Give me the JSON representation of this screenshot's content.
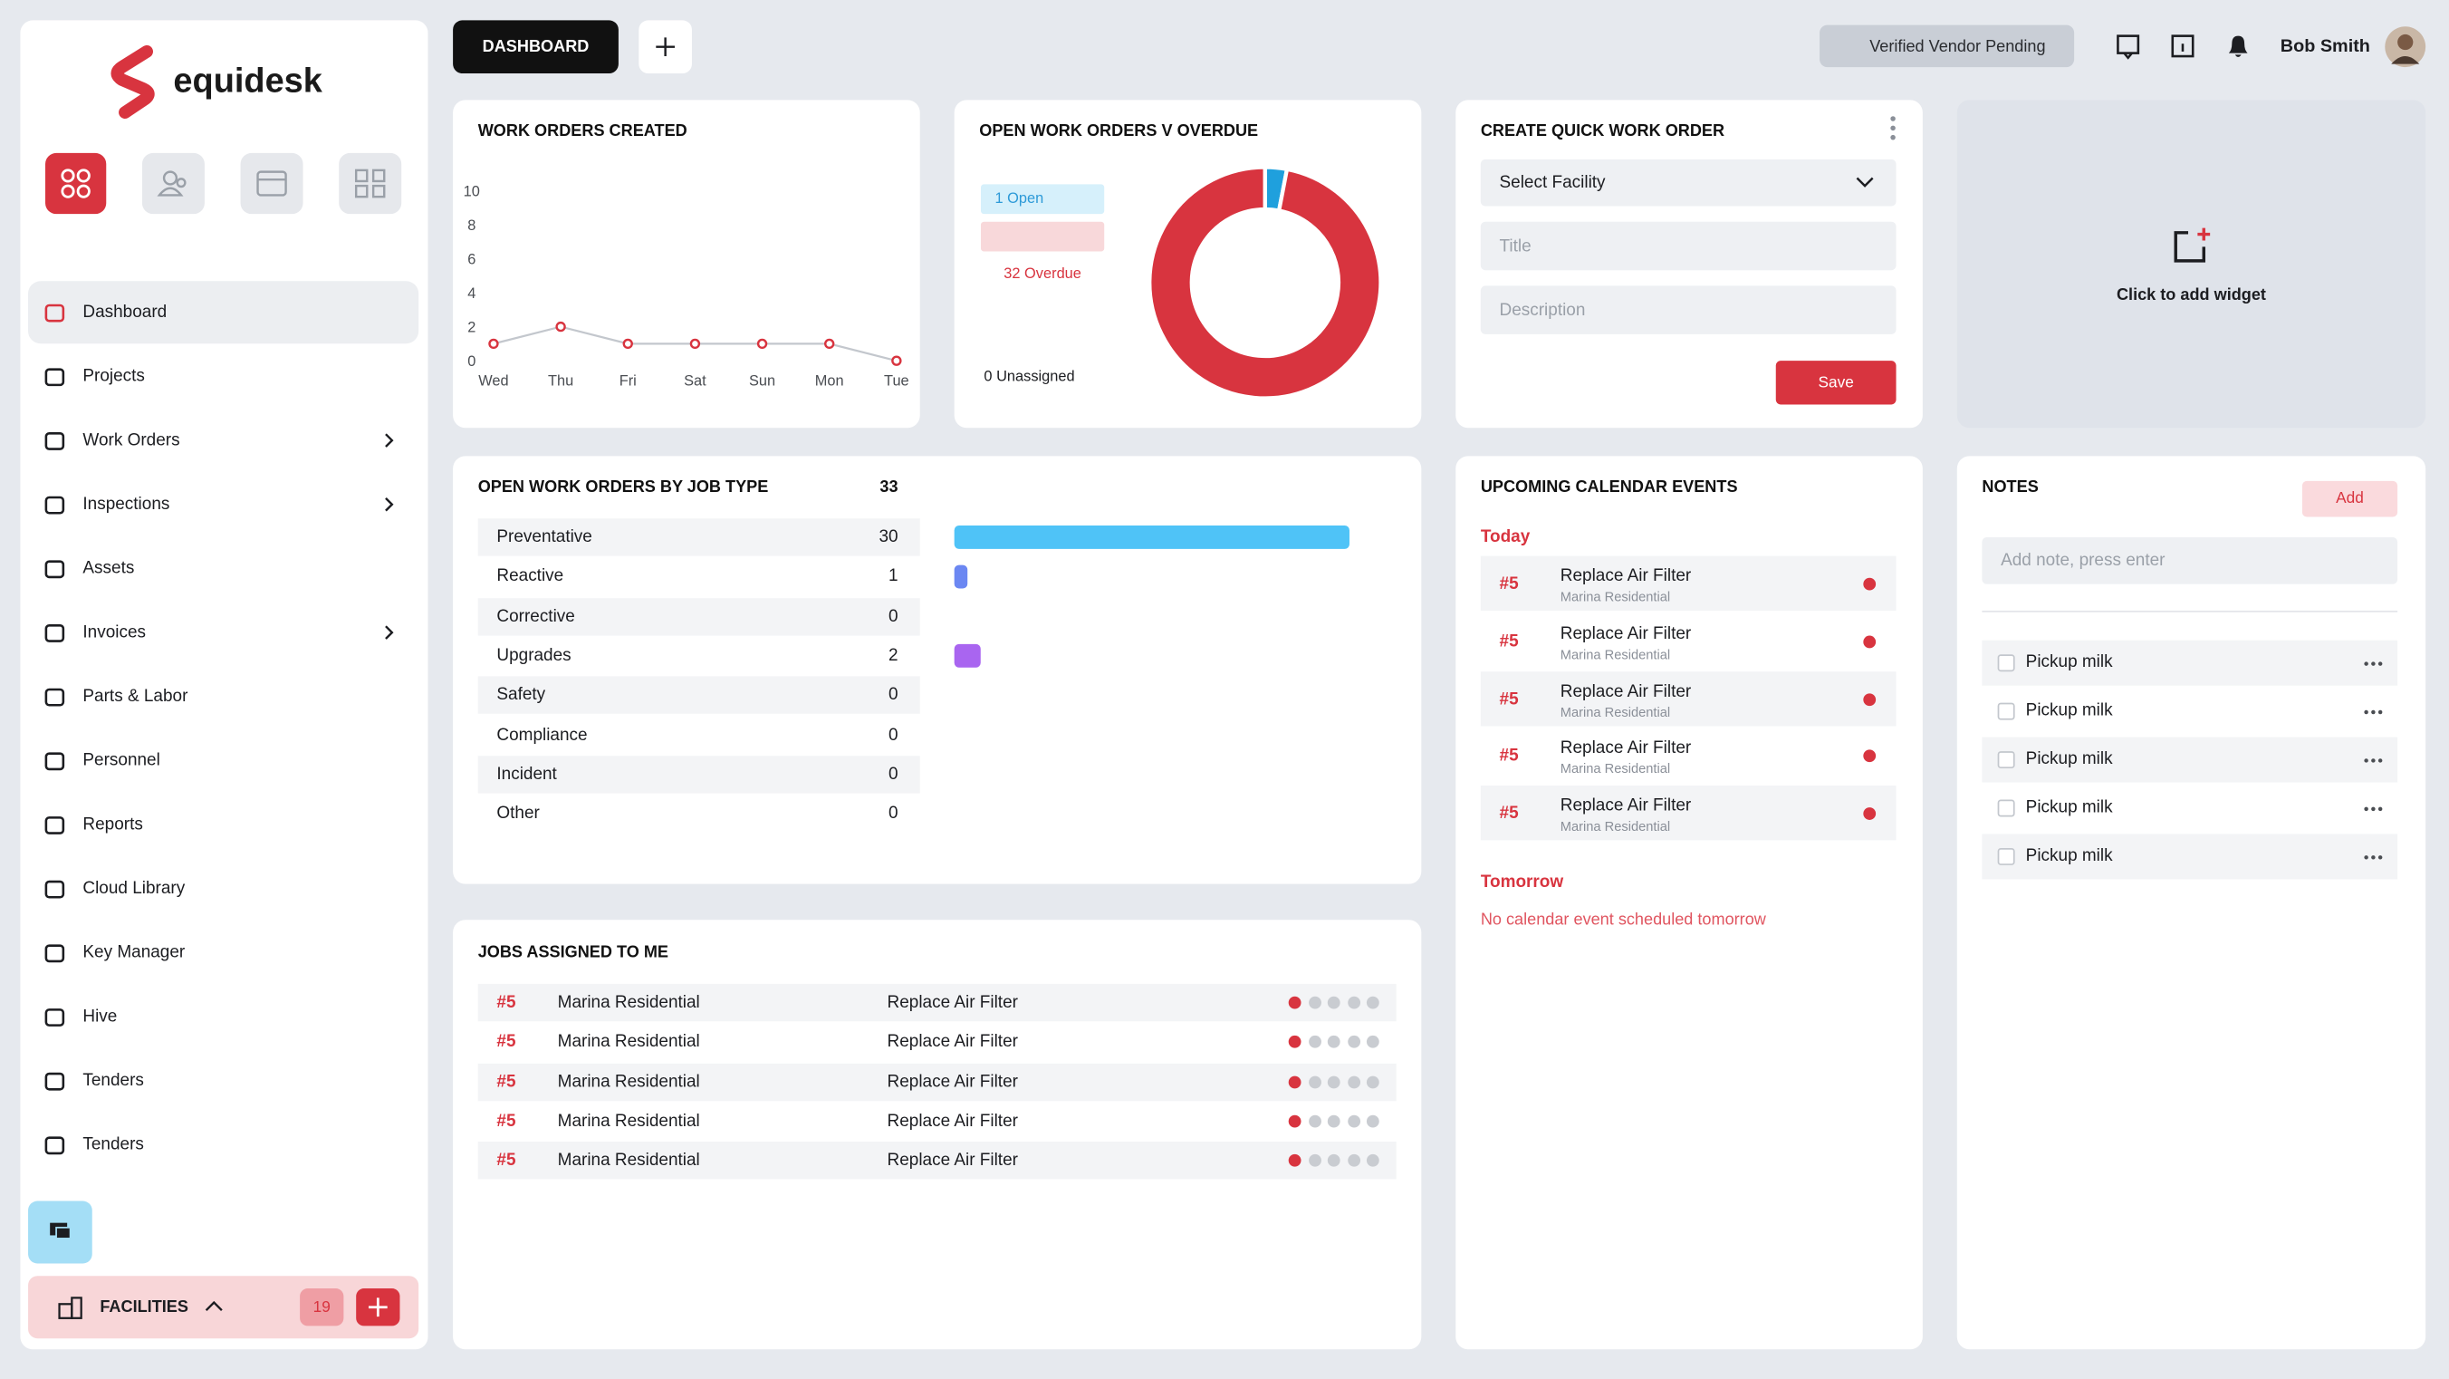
{
  "brand": "equidesk",
  "sidebar": {
    "nav": [
      {
        "label": "Dashboard",
        "expandable": false
      },
      {
        "label": "Projects",
        "expandable": false
      },
      {
        "label": "Work Orders",
        "expandable": true
      },
      {
        "label": "Inspections",
        "expandable": true
      },
      {
        "label": "Assets",
        "expandable": false
      },
      {
        "label": "Invoices",
        "expandable": true
      },
      {
        "label": "Parts & Labor",
        "expandable": false
      },
      {
        "label": "Personnel",
        "expandable": false
      },
      {
        "label": "Reports",
        "expandable": false
      },
      {
        "label": "Cloud Library",
        "expandable": false
      },
      {
        "label": "Key Manager",
        "expandable": false
      },
      {
        "label": "Hive",
        "expandable": false
      },
      {
        "label": "Tenders",
        "expandable": false
      },
      {
        "label": "Tenders",
        "expandable": false
      }
    ],
    "facilities": {
      "label": "FACILITIES",
      "count": 19
    }
  },
  "topbar": {
    "tab": "DASHBOARD",
    "vendor_status": "Verified Vendor Pending",
    "user": "Bob Smith"
  },
  "work_orders_created": {
    "type": "line",
    "title": "WORK ORDERS CREATED",
    "categories": [
      "Wed",
      "Thu",
      "Fri",
      "Sat",
      "Sun",
      "Mon",
      "Tue"
    ],
    "values": [
      1,
      2,
      1,
      1,
      1,
      1,
      0
    ],
    "ylim": [
      0,
      10
    ],
    "yticks": [
      0,
      2,
      4,
      6,
      8,
      10
    ],
    "color": "#d8343f",
    "line_color": "#c3c7cd"
  },
  "open_vs_overdue": {
    "type": "pie",
    "title": "OPEN WORK ORDERS V OVERDUE",
    "categories": [
      "Open",
      "Overdue",
      "Unassigned"
    ],
    "values": [
      1,
      32,
      0
    ],
    "value_labels": [
      "1 Open",
      "32 Overdue",
      "0 Unassigned"
    ],
    "colors": [
      "#1fa0dd",
      "#d8343f",
      "#8a8f98"
    ]
  },
  "job_type": {
    "type": "bar",
    "title": "OPEN WORK ORDERS BY JOB TYPE",
    "total": 33,
    "categories": [
      "Preventative",
      "Reactive",
      "Corrective",
      "Upgrades",
      "Safety",
      "Compliance",
      "Incident",
      "Other"
    ],
    "values": [
      30,
      1,
      0,
      2,
      0,
      0,
      0,
      0
    ],
    "colors": [
      "#4fc3f7",
      "#6b87f2",
      null,
      "#a965f0",
      null,
      null,
      null,
      null
    ]
  },
  "quick_work_order": {
    "title": "CREATE QUICK WORK ORDER",
    "facility": "Select Facility",
    "title_placeholder": "Title",
    "description_placeholder": "Description",
    "save": "Save"
  },
  "widget": {
    "label": "Click to add widget"
  },
  "calendar": {
    "title": "UPCOMING CALENDAR EVENTS",
    "today": "Today",
    "events": [
      {
        "id": "#5",
        "title": "Replace Air Filter",
        "location": "Marina Residential"
      },
      {
        "id": "#5",
        "title": "Replace Air Filter",
        "location": "Marina Residential"
      },
      {
        "id": "#5",
        "title": "Replace Air Filter",
        "location": "Marina Residential"
      },
      {
        "id": "#5",
        "title": "Replace Air Filter",
        "location": "Marina Residential"
      },
      {
        "id": "#5",
        "title": "Replace Air Filter",
        "location": "Marina Residential"
      }
    ],
    "tomorrow": "Tomorrow",
    "tomorrow_empty": "No calendar event scheduled tomorrow"
  },
  "notes": {
    "title": "NOTES",
    "add": "Add",
    "placeholder": "Add note, press enter",
    "items": [
      "Pickup milk",
      "Pickup milk",
      "Pickup milk",
      "Pickup milk",
      "Pickup milk"
    ]
  },
  "jobs": {
    "title": "JOBS ASSIGNED TO ME",
    "rows": [
      [
        "#5",
        "Marina Residential",
        "Replace Air Filter"
      ],
      [
        "#5",
        "Marina Residential",
        "Replace Air Filter"
      ],
      [
        "#5",
        "Marina Residential",
        "Replace Air Filter"
      ],
      [
        "#5",
        "Marina Residential",
        "Replace Air Filter"
      ],
      [
        "#5",
        "Marina Residential",
        "Replace Air Filter"
      ]
    ]
  }
}
